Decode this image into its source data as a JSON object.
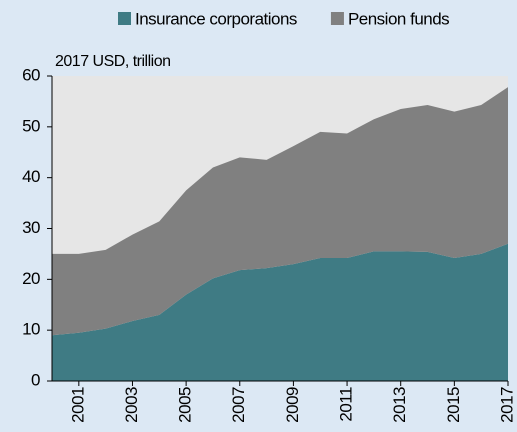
{
  "chart_data": {
    "type": "stacked_area",
    "y_label": "2017 USD, trillion",
    "x": [
      2000,
      2001,
      2002,
      2003,
      2004,
      2005,
      2006,
      2007,
      2008,
      2009,
      2010,
      2011,
      2012,
      2013,
      2014,
      2015,
      2016,
      2017
    ],
    "series": [
      {
        "name": "Insurance corporations",
        "color": "#3f7b84",
        "values": [
          9,
          9.5,
          10.3,
          11.8,
          13,
          17,
          20.2,
          21.8,
          22.2,
          23,
          24.2,
          24.2,
          25.5,
          25.5,
          25.4,
          24.2,
          25,
          27
        ]
      },
      {
        "name": "Pension funds",
        "color": "#808080",
        "values": [
          16,
          15.5,
          15.5,
          17,
          18.4,
          20.5,
          21.8,
          22.2,
          21.3,
          23.2,
          24.8,
          24.5,
          26,
          28,
          28.9,
          28.8,
          29.3,
          30.8
        ]
      }
    ],
    "xlim": [
      2000,
      2017
    ],
    "xticks": [
      2001,
      2003,
      2005,
      2007,
      2009,
      2011,
      2013,
      2015,
      2017
    ],
    "ylim": [
      0,
      60
    ],
    "yticks": [
      0,
      10,
      20,
      30,
      40,
      50,
      60
    ],
    "legend": "top"
  }
}
